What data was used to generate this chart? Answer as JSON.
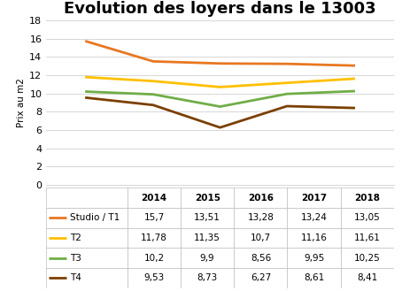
{
  "title": "Evolution des loyers dans le 13003",
  "ylabel": "Prix au m2",
  "years": [
    2014,
    2015,
    2016,
    2017,
    2018
  ],
  "series": [
    {
      "label": "Studio / T1",
      "values": [
        15.7,
        13.51,
        13.28,
        13.24,
        13.05
      ],
      "color": "#E87722"
    },
    {
      "label": "T2",
      "values": [
        11.78,
        11.35,
        10.7,
        11.16,
        11.61
      ],
      "color": "#FFC000"
    },
    {
      "label": "T3",
      "values": [
        10.2,
        9.9,
        8.56,
        9.95,
        10.25
      ],
      "color": "#70AD47"
    },
    {
      "label": "T4",
      "values": [
        9.53,
        8.73,
        6.27,
        8.61,
        8.41
      ],
      "color": "#7B3F00"
    }
  ],
  "ylim": [
    0,
    18
  ],
  "yticks": [
    0,
    2,
    4,
    6,
    8,
    10,
    12,
    14,
    16,
    18
  ],
  "grid_color": "#D0D0D0",
  "background_color": "#FFFFFF",
  "title_fontsize": 13,
  "axis_label_fontsize": 7.5,
  "tick_fontsize": 8,
  "table_fontsize": 7.5,
  "line_width": 2.0,
  "table_header_values": [
    "",
    "2014",
    "2015",
    "2016",
    "2017",
    "2018"
  ]
}
